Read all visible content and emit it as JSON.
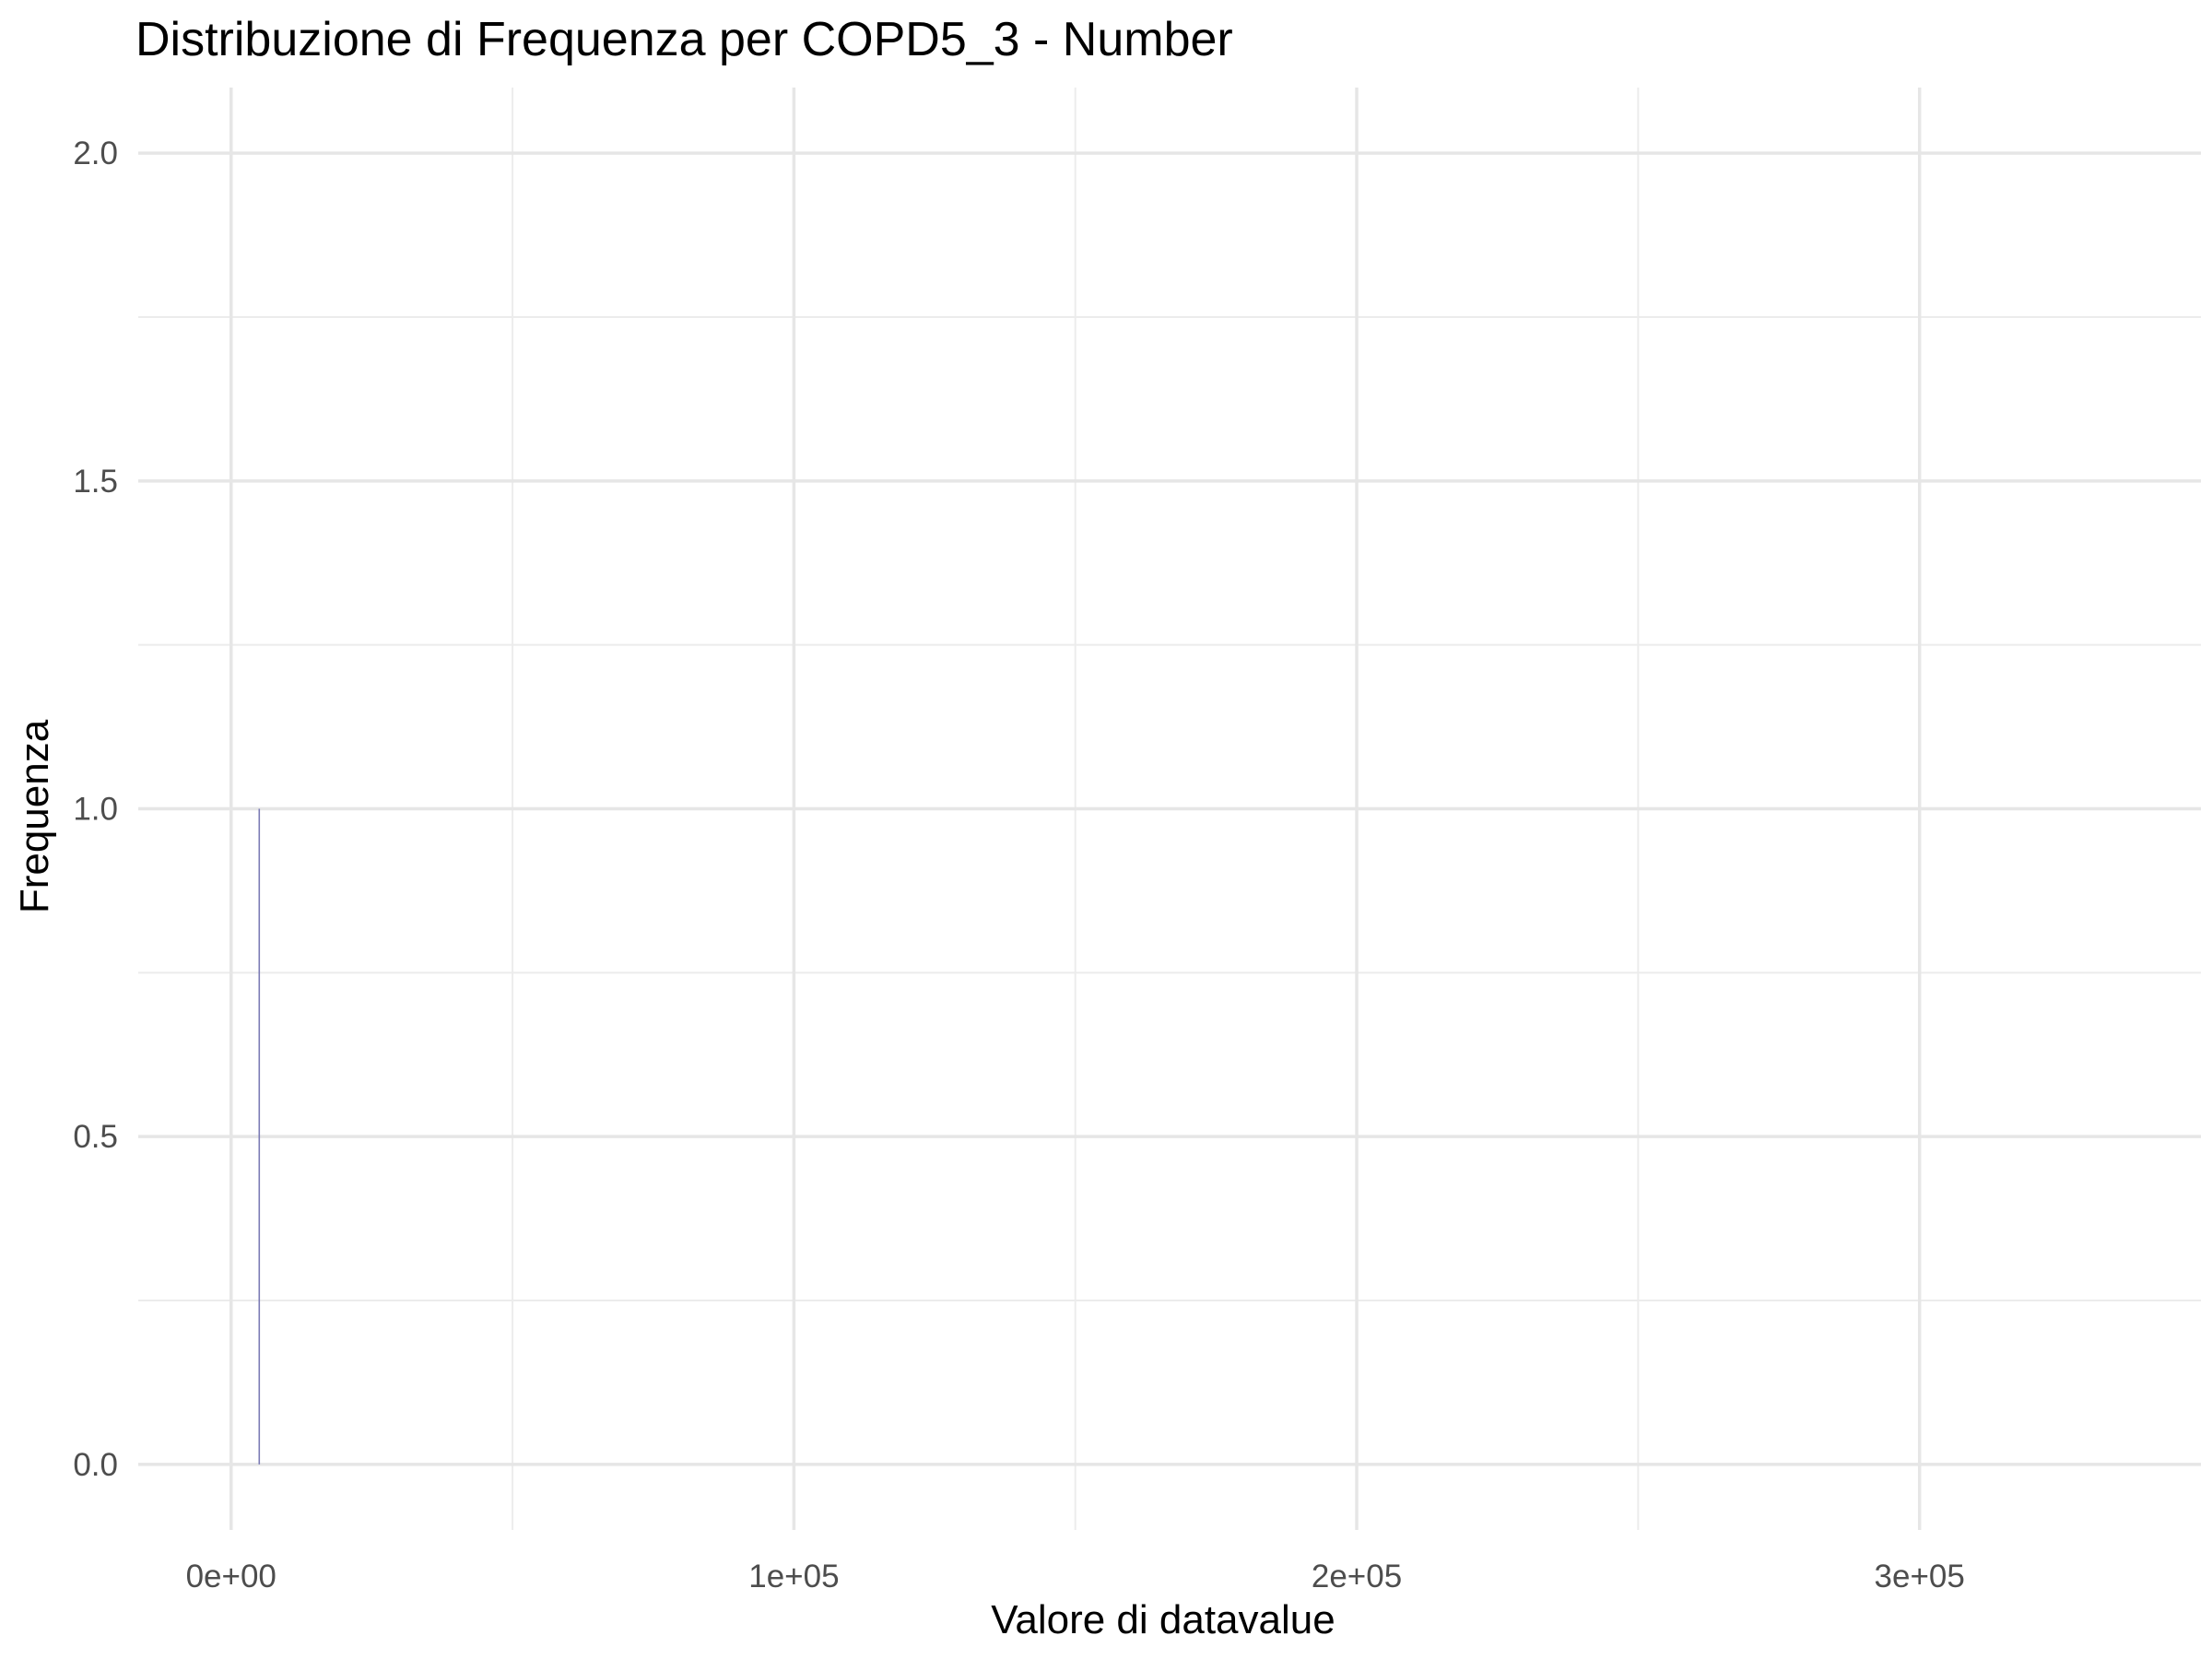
{
  "chart_data": {
    "type": "bar",
    "subtype": "histogram",
    "title": "Distribuzione di Frequenza per COPD5_3 - Number",
    "xlabel": "Valore di datavalue",
    "ylabel": "Frequenza",
    "xlim": [
      -16500,
      350000
    ],
    "ylim": [
      -0.1,
      2.1
    ],
    "x_major_ticks": [
      0,
      100000,
      200000,
      300000
    ],
    "x_tick_labels": [
      "0e+00",
      "1e+05",
      "2e+05",
      "3e+05"
    ],
    "x_minor_ticks": [
      50000,
      150000,
      250000
    ],
    "y_major_ticks": [
      0,
      0.5,
      1,
      1.5,
      2
    ],
    "y_tick_labels": [
      "0.0",
      "0.5",
      "1.0",
      "1.5",
      "2.0"
    ],
    "y_minor_ticks": [
      0.25,
      0.75,
      1.25,
      1.75
    ],
    "grid": true,
    "bars": [
      {
        "x": 5000,
        "count": 1
      }
    ],
    "colors": {
      "bar_outline": "#7b7bb5",
      "grid": "#e6e6e6",
      "text": "#4d4d4d"
    }
  }
}
